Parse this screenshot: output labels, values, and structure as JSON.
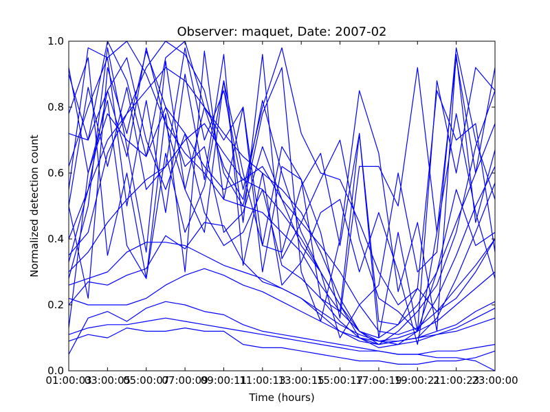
{
  "chart_data": {
    "type": "line",
    "title": "Observer: maquet, Date: 2007-02",
    "xlabel": "Time (hours)",
    "ylabel": "Normalized detection count",
    "xlim": [
      1,
      23
    ],
    "ylim": [
      0.0,
      1.0
    ],
    "grid": false,
    "legend": "none",
    "line_color": "#0000ff",
    "x_tick_values": [
      1,
      3,
      5,
      7,
      9,
      11,
      13,
      15,
      17,
      19,
      21,
      23
    ],
    "x_tick_labels": [
      "01:00:03",
      "03:00:05",
      "05:00:07",
      "07:00:09",
      "09:00:11",
      "11:00:13",
      "13:00:15",
      "15:00:17",
      "17:00:19",
      "19:00:21",
      "21:00:23",
      "23:00:00"
    ],
    "y_tick_values": [
      0.0,
      0.2,
      0.4,
      0.6,
      0.8,
      1.0
    ],
    "y_tick_labels": [
      "0.0",
      "0.2",
      "0.4",
      "0.6",
      "0.8",
      "1.0"
    ],
    "x": [
      1,
      2,
      3,
      4,
      5,
      6,
      7,
      8,
      9,
      10,
      11,
      12,
      13,
      14,
      15,
      16,
      17,
      18,
      19,
      20,
      21,
      22,
      23
    ],
    "series": [
      {
        "values": [
          0.2,
          0.27,
          0.26,
          0.29,
          0.31,
          0.41,
          0.37,
          0.45,
          0.44,
          0.33,
          0.27,
          0.25,
          0.22,
          0.17,
          0.12,
          0.09,
          0.08,
          0.09,
          0.1,
          0.12,
          0.14,
          0.18,
          0.21
        ]
      },
      {
        "values": [
          0.3,
          0.36,
          0.45,
          0.52,
          0.58,
          0.62,
          0.7,
          0.75,
          0.66,
          0.58,
          0.55,
          0.48,
          0.4,
          0.3,
          0.2,
          0.12,
          0.09,
          0.1,
          0.12,
          0.15,
          0.2,
          0.25,
          0.3
        ]
      },
      {
        "values": [
          0.4,
          0.55,
          0.7,
          0.78,
          0.85,
          0.92,
          0.88,
          0.8,
          0.72,
          0.65,
          0.6,
          0.55,
          0.48,
          0.36,
          0.22,
          0.12,
          0.08,
          0.09,
          0.1,
          0.16,
          0.28,
          0.42,
          0.57
        ]
      },
      {
        "values": [
          0.62,
          0.8,
          0.95,
          1.0,
          0.9,
          0.75,
          0.66,
          0.6,
          0.52,
          0.5,
          0.48,
          0.42,
          0.36,
          0.26,
          0.18,
          0.12,
          0.1,
          0.14,
          0.2,
          0.3,
          0.45,
          0.6,
          0.75
        ]
      },
      {
        "values": [
          0.13,
          0.6,
          0.78,
          0.7,
          0.65,
          0.8,
          0.72,
          0.62,
          0.55,
          0.58,
          0.62,
          0.52,
          0.45,
          0.38,
          0.3,
          0.2,
          0.12,
          0.11,
          0.13,
          0.18,
          0.25,
          0.32,
          0.4
        ]
      },
      {
        "values": [
          0.9,
          0.7,
          0.85,
          0.95,
          0.7,
          0.55,
          0.72,
          0.48,
          0.38,
          0.42,
          0.55,
          0.32,
          0.28,
          0.22,
          0.15,
          0.1,
          0.07,
          0.08,
          0.12,
          0.22,
          0.35,
          0.5,
          0.62
        ]
      },
      {
        "values": [
          0.72,
          0.7,
          1.0,
          0.88,
          0.65,
          0.95,
          1.0,
          0.8,
          0.62,
          0.52,
          0.82,
          0.6,
          0.42,
          0.3,
          0.2,
          0.1,
          0.08,
          0.12,
          0.18,
          0.26,
          0.42,
          0.68,
          0.85
        ]
      },
      {
        "values": [
          0.26,
          0.28,
          0.3,
          0.36,
          0.39,
          0.39,
          0.38,
          0.35,
          0.32,
          0.3,
          0.28,
          0.25,
          0.22,
          0.18,
          0.14,
          0.11,
          0.09,
          0.08,
          0.09,
          0.11,
          0.13,
          0.16,
          0.19
        ]
      },
      {
        "values": [
          0.22,
          0.2,
          0.2,
          0.2,
          0.22,
          0.26,
          0.29,
          0.31,
          0.29,
          0.26,
          0.24,
          0.21,
          0.18,
          0.15,
          0.12,
          0.1,
          0.09,
          0.09,
          0.1,
          0.11,
          0.12,
          0.14,
          0.16
        ]
      },
      {
        "values": [
          0.11,
          0.13,
          0.14,
          0.14,
          0.15,
          0.16,
          0.15,
          0.14,
          0.13,
          0.12,
          0.11,
          0.1,
          0.09,
          0.08,
          0.07,
          0.06,
          0.06,
          0.05,
          0.05,
          0.06,
          0.06,
          0.07,
          0.08
        ]
      },
      {
        "values": [
          0.09,
          0.11,
          0.1,
          0.13,
          0.12,
          0.12,
          0.13,
          0.12,
          0.12,
          0.08,
          0.07,
          0.07,
          0.06,
          0.05,
          0.04,
          0.03,
          0.03,
          0.02,
          0.02,
          0.03,
          0.03,
          0.04,
          0.06
        ]
      },
      {
        "values": [
          0.05,
          0.16,
          0.18,
          0.15,
          0.19,
          0.21,
          0.2,
          0.18,
          0.17,
          0.14,
          0.12,
          0.11,
          0.1,
          0.09,
          0.08,
          0.07,
          0.06,
          0.05,
          0.05,
          0.04,
          0.04,
          0.03,
          0.0
        ]
      },
      {
        "values": [
          0.5,
          0.86,
          0.62,
          0.86,
          0.55,
          0.62,
          0.98,
          0.7,
          0.85,
          0.55,
          0.8,
          0.98,
          0.72,
          0.6,
          0.58,
          0.45,
          0.3,
          0.2,
          0.25,
          0.18,
          0.22,
          0.3,
          0.4
        ]
      },
      {
        "values": [
          0.33,
          0.55,
          0.85,
          0.65,
          0.98,
          0.75,
          0.55,
          0.42,
          0.88,
          0.45,
          0.96,
          0.34,
          0.45,
          0.58,
          0.7,
          0.4,
          0.22,
          0.18,
          0.12,
          0.3,
          0.55,
          0.38,
          0.42
        ]
      },
      {
        "values": [
          0.92,
          0.6,
          0.82,
          0.38,
          0.28,
          0.78,
          0.3,
          0.97,
          0.52,
          0.8,
          0.3,
          0.62,
          0.58,
          0.22,
          0.18,
          0.72,
          0.15,
          0.14,
          0.25,
          0.85,
          0.7,
          0.75,
          0.36
        ]
      },
      {
        "values": [
          0.55,
          0.98,
          0.95,
          0.5,
          0.82,
          0.48,
          0.9,
          0.58,
          0.96,
          0.32,
          0.6,
          0.26,
          0.33,
          0.48,
          0.52,
          0.3,
          0.48,
          0.3,
          0.08,
          0.42,
          0.95,
          0.6,
          0.92
        ]
      },
      {
        "values": [
          0.78,
          0.95,
          0.35,
          0.6,
          0.28,
          0.66,
          0.42,
          0.56,
          0.88,
          0.6,
          0.38,
          0.68,
          0.58,
          0.42,
          0.16,
          0.62,
          0.62,
          0.5,
          0.92,
          0.42,
          0.78,
          0.48,
          0.28
        ]
      },
      {
        "values": [
          0.28,
          0.5,
          0.98,
          0.68,
          0.36,
          0.94,
          0.55,
          0.8,
          0.7,
          0.8,
          0.38,
          0.36,
          0.56,
          0.66,
          0.38,
          0.72,
          0.1,
          0.42,
          0.12,
          0.88,
          0.6,
          0.92,
          0.85
        ]
      },
      {
        "values": [
          0.5,
          0.22,
          0.92,
          0.72,
          0.97,
          0.8,
          0.62,
          0.68,
          0.42,
          0.48,
          0.68,
          0.52,
          0.38,
          0.3,
          0.1,
          0.2,
          0.26,
          0.6,
          0.3,
          0.36,
          0.98,
          0.7,
          0.52
        ]
      },
      {
        "values": [
          0.35,
          0.42,
          0.66,
          0.78,
          0.92,
          1.0,
          0.96,
          0.85,
          0.6,
          0.5,
          0.78,
          0.92,
          0.3,
          0.15,
          0.4,
          0.85,
          0.66,
          0.24,
          0.45,
          0.12,
          0.96,
          0.45,
          0.67
        ]
      }
    ]
  }
}
